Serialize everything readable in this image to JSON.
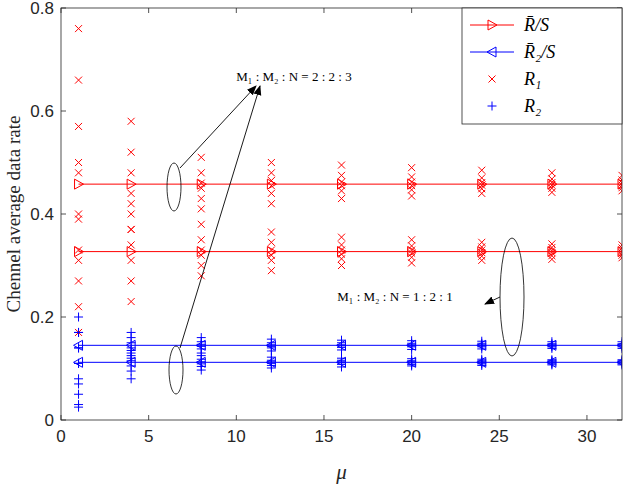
{
  "chart_data": {
    "type": "scatter",
    "x_label": "μ",
    "y_label": "Chennel average data rate",
    "xlim": [
      0,
      32
    ],
    "ylim": [
      0,
      0.8
    ],
    "xticks": [
      0,
      5,
      10,
      15,
      20,
      25,
      30
    ],
    "yticks": [
      0,
      0.2,
      0.4,
      0.6,
      0.8
    ],
    "grid": false,
    "legend": "top-right",
    "annotations": [
      {
        "text": "M₁ : M₂ : N = 2 : 2 : 3"
      },
      {
        "text": "M₁ : M₂ : N = 1 : 2 : 1"
      }
    ],
    "series": [
      {
        "name": "R̄/S",
        "type": "line",
        "color": "#ff0000",
        "marker": "triangle-right",
        "line_style": "solid",
        "x": [
          1,
          4,
          8,
          12,
          16,
          20,
          24,
          28,
          32
        ],
        "values": [
          0.458,
          0.458,
          0.458,
          0.458,
          0.458,
          0.458,
          0.458,
          0.458,
          0.458
        ]
      },
      {
        "name": "R̄₂/S",
        "type": "line",
        "color": "#0000ff",
        "marker": "triangle-left",
        "line_style": "solid",
        "x": [
          1,
          4,
          8,
          12,
          16,
          20,
          24,
          28,
          32
        ],
        "values": [
          0.145,
          0.145,
          0.145,
          0.145,
          0.145,
          0.145,
          0.145,
          0.145,
          0.145
        ]
      },
      {
        "name": "R₁",
        "type": "scatter",
        "color": "#ff0000",
        "marker": "x",
        "line_style": "none",
        "x": [
          1,
          1,
          1,
          1,
          1,
          1,
          1,
          1,
          1,
          1,
          1,
          1,
          4,
          4,
          4,
          4,
          4,
          4,
          4,
          4,
          4,
          4,
          4,
          4,
          8,
          8,
          8,
          8,
          8,
          8,
          8,
          8,
          8,
          8,
          8,
          8,
          12,
          12,
          12,
          12,
          12,
          12,
          12,
          12,
          12,
          12,
          12,
          12,
          16,
          16,
          16,
          16,
          16,
          16,
          16,
          16,
          16,
          16,
          16,
          16,
          20,
          20,
          20,
          20,
          20,
          20,
          20,
          20,
          20,
          20,
          20,
          20,
          24,
          24,
          24,
          24,
          24,
          24,
          24,
          24,
          24,
          24,
          24,
          24,
          28,
          28,
          28,
          28,
          28,
          28,
          28,
          28,
          28,
          28,
          28,
          28,
          32,
          32,
          32,
          32,
          32,
          32,
          32,
          32,
          32,
          32,
          32,
          32
        ],
        "values": [
          0.76,
          0.66,
          0.57,
          0.48,
          0.39,
          0.31,
          0.5,
          0.4,
          0.33,
          0.27,
          0.22,
          0.17,
          0.58,
          0.52,
          0.48,
          0.44,
          0.4,
          0.37,
          0.42,
          0.37,
          0.34,
          0.31,
          0.27,
          0.23,
          0.51,
          0.48,
          0.46,
          0.45,
          0.43,
          0.41,
          0.38,
          0.35,
          0.33,
          0.32,
          0.3,
          0.28,
          0.5,
          0.48,
          0.465,
          0.455,
          0.44,
          0.42,
          0.365,
          0.345,
          0.33,
          0.32,
          0.31,
          0.29,
          0.495,
          0.475,
          0.462,
          0.455,
          0.445,
          0.43,
          0.355,
          0.34,
          0.33,
          0.322,
          0.313,
          0.3,
          0.49,
          0.472,
          0.462,
          0.455,
          0.447,
          0.435,
          0.35,
          0.338,
          0.33,
          0.324,
          0.316,
          0.305,
          0.485,
          0.47,
          0.461,
          0.456,
          0.449,
          0.44,
          0.345,
          0.336,
          0.33,
          0.325,
          0.318,
          0.31,
          0.48,
          0.468,
          0.461,
          0.456,
          0.45,
          0.442,
          0.342,
          0.335,
          0.329,
          0.325,
          0.319,
          0.312,
          0.475,
          0.466,
          0.46,
          0.456,
          0.451,
          0.445,
          0.34,
          0.334,
          0.329,
          0.325,
          0.32,
          0.315
        ]
      },
      {
        "name": "R₂",
        "type": "scatter",
        "color": "#0000ff",
        "marker": "plus",
        "line_style": "none",
        "x": [
          1,
          1,
          1,
          1,
          1,
          1,
          1,
          1,
          1,
          1,
          1,
          1,
          4,
          4,
          4,
          4,
          4,
          4,
          4,
          4,
          4,
          4,
          4,
          4,
          8,
          8,
          8,
          8,
          8,
          8,
          8,
          8,
          8,
          8,
          8,
          8,
          12,
          12,
          12,
          12,
          12,
          12,
          12,
          12,
          12,
          12,
          12,
          12,
          16,
          16,
          16,
          16,
          16,
          16,
          16,
          16,
          16,
          16,
          16,
          16,
          20,
          20,
          20,
          20,
          20,
          20,
          20,
          20,
          20,
          20,
          20,
          20,
          24,
          24,
          24,
          24,
          24,
          24,
          24,
          24,
          24,
          24,
          24,
          24,
          28,
          28,
          28,
          28,
          28,
          28,
          28,
          28,
          28,
          28,
          28,
          28,
          32,
          32,
          32,
          32,
          32,
          32,
          32,
          32,
          32,
          32,
          32,
          32
        ],
        "values": [
          0.2,
          0.17,
          0.14,
          0.11,
          0.07,
          0.03,
          0.17,
          0.14,
          0.11,
          0.08,
          0.05,
          0.025,
          0.17,
          0.16,
          0.15,
          0.14,
          0.13,
          0.12,
          0.135,
          0.125,
          0.115,
          0.105,
          0.095,
          0.08,
          0.16,
          0.152,
          0.147,
          0.143,
          0.138,
          0.13,
          0.125,
          0.118,
          0.113,
          0.109,
          0.104,
          0.097,
          0.157,
          0.15,
          0.146,
          0.143,
          0.14,
          0.134,
          0.122,
          0.116,
          0.113,
          0.11,
          0.106,
          0.101,
          0.155,
          0.15,
          0.146,
          0.144,
          0.141,
          0.136,
          0.12,
          0.116,
          0.113,
          0.111,
          0.108,
          0.103,
          0.154,
          0.149,
          0.146,
          0.144,
          0.142,
          0.137,
          0.119,
          0.115,
          0.113,
          0.111,
          0.108,
          0.105,
          0.153,
          0.149,
          0.146,
          0.144,
          0.142,
          0.138,
          0.118,
          0.115,
          0.113,
          0.111,
          0.109,
          0.106,
          0.152,
          0.148,
          0.146,
          0.144,
          0.142,
          0.139,
          0.117,
          0.115,
          0.113,
          0.111,
          0.109,
          0.107,
          0.152,
          0.148,
          0.146,
          0.144,
          0.142,
          0.139,
          0.117,
          0.115,
          0.113,
          0.111,
          0.109,
          0.107
        ]
      },
      {
        "name": "R̄/S",
        "type": "line",
        "color": "#ff0000",
        "marker": "triangle-right",
        "line_style": "solid",
        "x": [
          1,
          4,
          8,
          12,
          16,
          20,
          24,
          28,
          32
        ],
        "values": [
          0.327,
          0.327,
          0.327,
          0.327,
          0.327,
          0.327,
          0.327,
          0.327,
          0.327
        ]
      },
      {
        "name": "R̄₂/S",
        "type": "line",
        "color": "#0000ff",
        "marker": "triangle-left",
        "line_style": "solid",
        "x": [
          1,
          4,
          8,
          12,
          16,
          20,
          24,
          28,
          32
        ],
        "values": [
          0.112,
          0.112,
          0.112,
          0.112,
          0.112,
          0.112,
          0.112,
          0.112,
          0.112
        ]
      }
    ]
  }
}
